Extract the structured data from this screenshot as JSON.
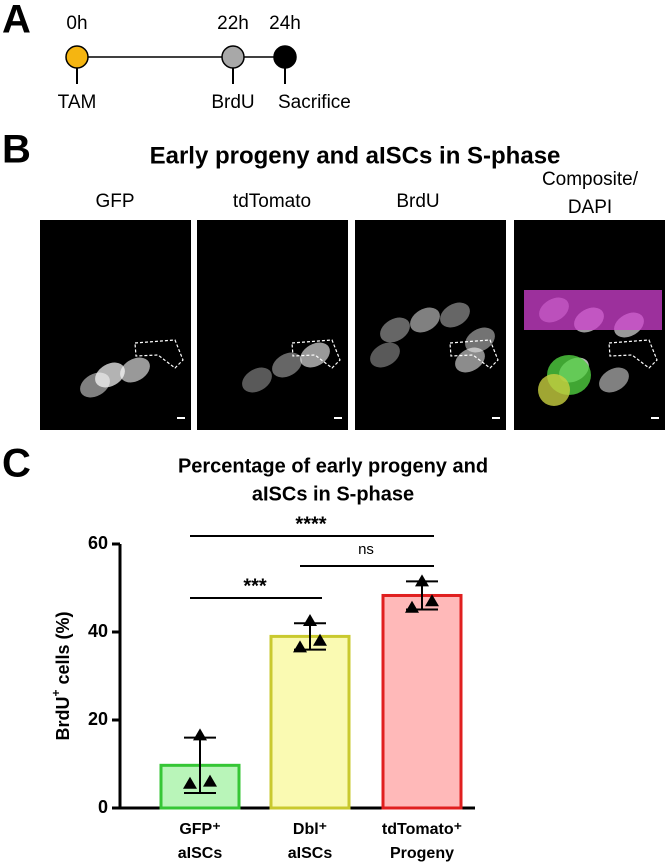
{
  "panel_a": {
    "label": "A",
    "times": [
      "0h",
      "22h",
      "24h"
    ],
    "events": [
      "TAM",
      "BrdU",
      "Sacrifice"
    ]
  },
  "panel_b": {
    "label": "B",
    "title": "Early progeny and aISCs in S-phase",
    "channels": [
      "GFP",
      "tdTomato",
      "BrdU",
      "Composite/",
      "DAPI"
    ]
  },
  "panel_c": {
    "label": "C"
  },
  "chart_data": {
    "type": "bar",
    "title": [
      "Percentage of early progeny and",
      "aISCs in S-phase"
    ],
    "ylabel": {
      "text": "BrdU",
      "sup": "+",
      "rest": " cells (%)"
    },
    "categories": [
      "GFP⁺ aISCs",
      "Dbl⁺ aISCs",
      "tdTomato⁺ Progeny"
    ],
    "values": [
      9.7,
      39,
      48.3
    ],
    "errors": [
      6.3,
      3,
      3.2
    ],
    "points": [
      [
        16.5,
        6,
        5.5
      ],
      [
        42.5,
        38,
        36.5
      ],
      [
        51.5,
        47,
        45.5
      ]
    ],
    "fill_colors": [
      "#b9f5b9",
      "#fafab2",
      "#ffb9b9"
    ],
    "edge_colors": [
      "#35c635",
      "#c9c92e",
      "#e01f1f"
    ],
    "annotations": [
      "****",
      "ns",
      "***"
    ],
    "ylim": [
      0,
      60
    ],
    "yticks": [
      0,
      20,
      40,
      60
    ]
  }
}
